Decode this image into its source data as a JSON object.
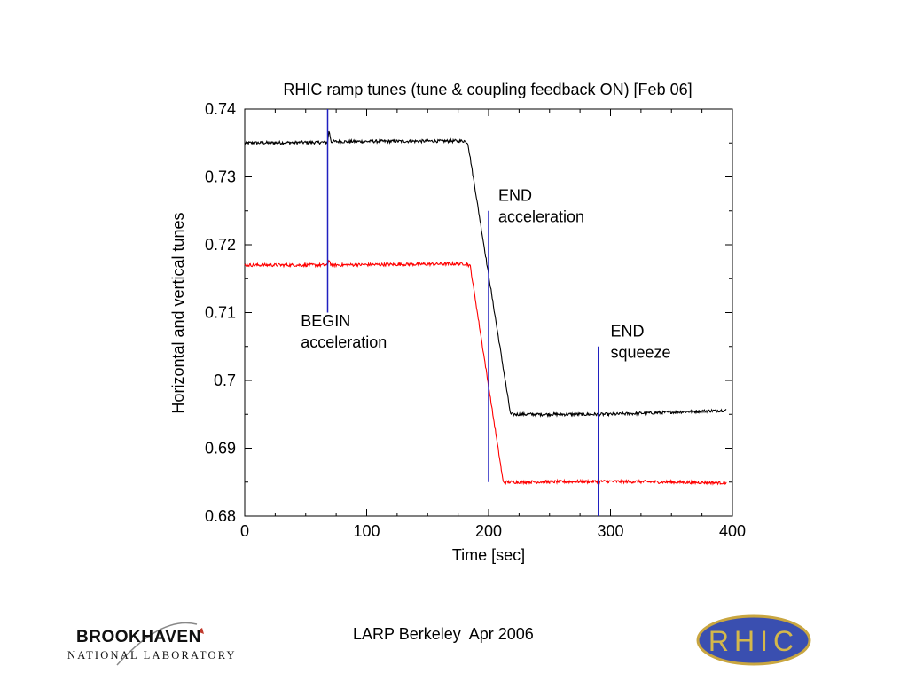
{
  "chart_data": {
    "type": "line",
    "title": "RHIC ramp tunes (tune & coupling feedback ON)   [Feb 06]",
    "xlabel": "Time [sec]",
    "ylabel": "Horizontal and vertical tunes",
    "xlim": [
      0,
      400
    ],
    "ylim": [
      0.68,
      0.74
    ],
    "xticks": [
      0,
      100,
      200,
      300,
      400
    ],
    "xtick_labels": [
      "0",
      "100",
      "200",
      "300",
      "400"
    ],
    "yticks": [
      0.68,
      0.69,
      0.7,
      0.71,
      0.72,
      0.73,
      0.74
    ],
    "ytick_labels": [
      "0.68",
      "0.69",
      "0.7",
      "0.71",
      "0.72",
      "0.73",
      "0.74"
    ],
    "grid": false,
    "series": [
      {
        "color": "#000000",
        "x": [
          0,
          68,
          69,
          71,
          180,
          183,
          218,
          222,
          300,
          395
        ],
        "y": [
          0.735,
          0.7351,
          0.7368,
          0.7352,
          0.7353,
          0.735,
          0.695,
          0.695,
          0.695,
          0.6956
        ]
      },
      {
        "color": "#ff0000",
        "x": [
          0,
          68,
          69,
          71,
          182,
          185,
          212,
          218,
          300,
          395
        ],
        "y": [
          0.717,
          0.717,
          0.7178,
          0.717,
          0.7172,
          0.7168,
          0.685,
          0.685,
          0.6851,
          0.6849
        ]
      }
    ],
    "vlines": [
      {
        "x": 68,
        "y0": 0.71,
        "y1": 0.74,
        "color": "#2020c0"
      },
      {
        "x": 200,
        "y0": 0.685,
        "y1": 0.725,
        "color": "#2020c0"
      },
      {
        "x": 290,
        "y0": 0.68,
        "y1": 0.705,
        "color": "#2020c0"
      }
    ],
    "annotations": [
      {
        "lines": [
          "BEGIN",
          "acceleration"
        ],
        "x": 46,
        "y": 0.708
      },
      {
        "lines": [
          "END",
          "acceleration"
        ],
        "x": 208,
        "y": 0.7265
      },
      {
        "lines": [
          "END",
          "squeeze"
        ],
        "x": 300,
        "y": 0.7065
      }
    ]
  },
  "footer": {
    "text": "LARP Berkeley  Apr 2006",
    "brookhaven_logo": {
      "word": "BROOKHAVEN",
      "subtitle": "NATIONAL LABORATORY"
    },
    "rhic_logo": {
      "text": "RHIC"
    }
  },
  "colors": {
    "black_series": "#000000",
    "red_series": "#ff0000",
    "markers": "#2020c0",
    "rhic_logo_fill": "#3a4fb0",
    "rhic_logo_text": "#d4b84a"
  }
}
